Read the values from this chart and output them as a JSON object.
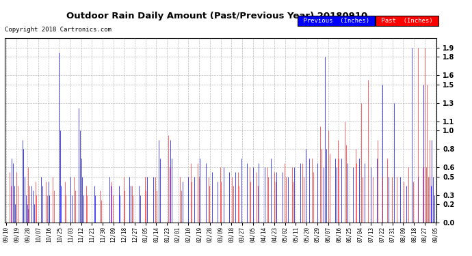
{
  "title": "Outdoor Rain Daily Amount (Past/Previous Year) 20180910",
  "copyright": "Copyright 2018 Cartronics.com",
  "legend_previous": "Previous  (Inches)",
  "legend_past": "Past  (Inches)",
  "yticks": [
    0.0,
    0.2,
    0.3,
    0.5,
    0.6,
    0.8,
    1.0,
    1.1,
    1.3,
    1.5,
    1.6,
    1.8,
    1.9
  ],
  "ymax": 2.0,
  "ymin": 0.0,
  "color_previous": "#0000ff",
  "color_past": "#ff0000",
  "background_color": "#ffffff",
  "grid_color": "#aaaaaa",
  "x_labels": [
    "09/10",
    "09/19",
    "09/28",
    "10/07",
    "10/16",
    "10/25",
    "11/03",
    "11/12",
    "11/21",
    "11/30",
    "12/09",
    "12/18",
    "12/27",
    "01/05",
    "01/14",
    "01/23",
    "02/01",
    "02/10",
    "02/19",
    "02/28",
    "03/09",
    "03/18",
    "03/27",
    "04/05",
    "04/14",
    "04/23",
    "05/02",
    "05/11",
    "05/20",
    "05/29",
    "06/07",
    "06/16",
    "06/25",
    "07/04",
    "07/13",
    "07/22",
    "07/31",
    "08/09",
    "08/18",
    "08/27",
    "09/05"
  ],
  "n_points": 366,
  "blue_spikes": {
    "positions": [
      5,
      6,
      7,
      8,
      14,
      15,
      16,
      17,
      18,
      19,
      22,
      23,
      24,
      30,
      31,
      36,
      37,
      45,
      46,
      47,
      55,
      56,
      62,
      63,
      64,
      65,
      66,
      75,
      76,
      88,
      89,
      96,
      97,
      105,
      106,
      113,
      114,
      120,
      125,
      130,
      131,
      140,
      141,
      150,
      155,
      160,
      165,
      170,
      175,
      180,
      185,
      190,
      195,
      200,
      205,
      210,
      215,
      220,
      225,
      230,
      235,
      240,
      245,
      250,
      255,
      258,
      265,
      270,
      271,
      272,
      280,
      281,
      285,
      290,
      295,
      300,
      305,
      310,
      315,
      320,
      325,
      330,
      335,
      340,
      345,
      350,
      355,
      360,
      361,
      362,
      363,
      364,
      365
    ],
    "values": [
      0.7,
      0.65,
      0.4,
      0.2,
      0.9,
      0.8,
      0.5,
      0.3,
      0.2,
      0.15,
      0.4,
      0.35,
      0.2,
      0.5,
      0.4,
      0.45,
      0.3,
      1.85,
      1.0,
      0.4,
      0.5,
      0.3,
      1.25,
      1.0,
      0.7,
      0.5,
      0.3,
      0.4,
      0.3,
      0.5,
      0.4,
      0.4,
      0.3,
      0.5,
      0.4,
      0.4,
      0.3,
      0.5,
      0.5,
      0.9,
      0.7,
      0.9,
      0.7,
      0.45,
      0.5,
      0.5,
      0.7,
      0.65,
      0.55,
      0.45,
      0.6,
      0.55,
      0.55,
      0.7,
      0.65,
      0.6,
      0.65,
      0.6,
      0.7,
      0.55,
      0.55,
      0.5,
      0.6,
      0.65,
      0.8,
      0.7,
      0.65,
      0.6,
      1.8,
      0.8,
      0.7,
      0.6,
      0.7,
      0.65,
      0.6,
      0.7,
      0.65,
      0.6,
      0.7,
      1.5,
      0.5,
      1.3,
      0.5,
      0.4,
      1.9,
      0.5,
      1.5,
      0.5,
      0.4,
      0.9,
      0.5,
      0.3
    ]
  },
  "red_spikes": {
    "positions": [
      3,
      4,
      9,
      10,
      19,
      20,
      25,
      26,
      34,
      35,
      40,
      41,
      50,
      51,
      58,
      59,
      68,
      69,
      80,
      81,
      90,
      91,
      100,
      101,
      107,
      108,
      118,
      119,
      127,
      128,
      138,
      139,
      148,
      149,
      157,
      158,
      163,
      164,
      172,
      173,
      182,
      183,
      192,
      193,
      197,
      198,
      207,
      208,
      213,
      214,
      222,
      223,
      228,
      229,
      237,
      238,
      243,
      244,
      252,
      253,
      260,
      261,
      267,
      268,
      274,
      275,
      282,
      283,
      288,
      289,
      297,
      298,
      302,
      303,
      308,
      312,
      316,
      320,
      324,
      328,
      332,
      338,
      342,
      346,
      350,
      354,
      356,
      357,
      358,
      359,
      360,
      363,
      365
    ],
    "values": [
      0.55,
      0.4,
      0.55,
      0.4,
      0.6,
      0.4,
      0.45,
      0.3,
      0.45,
      0.3,
      0.5,
      0.35,
      0.45,
      0.3,
      0.5,
      0.35,
      0.4,
      0.3,
      0.35,
      0.25,
      0.45,
      0.3,
      0.5,
      0.35,
      0.4,
      0.3,
      0.5,
      0.35,
      0.5,
      0.35,
      0.95,
      0.6,
      0.5,
      0.35,
      0.65,
      0.45,
      0.65,
      0.5,
      0.5,
      0.4,
      0.6,
      0.45,
      0.5,
      0.4,
      0.55,
      0.4,
      0.6,
      0.45,
      0.55,
      0.4,
      0.6,
      0.5,
      0.55,
      0.45,
      0.65,
      0.5,
      0.6,
      0.45,
      0.65,
      0.5,
      0.7,
      0.55,
      1.05,
      0.8,
      1.0,
      0.75,
      0.9,
      0.7,
      1.1,
      0.85,
      0.8,
      0.65,
      1.3,
      0.5,
      1.55,
      0.5,
      0.9,
      0.5,
      0.7,
      0.5,
      0.5,
      0.45,
      0.6,
      0.45,
      1.9,
      0.6,
      1.9,
      0.6,
      1.5,
      0.5,
      0.9
    ]
  }
}
